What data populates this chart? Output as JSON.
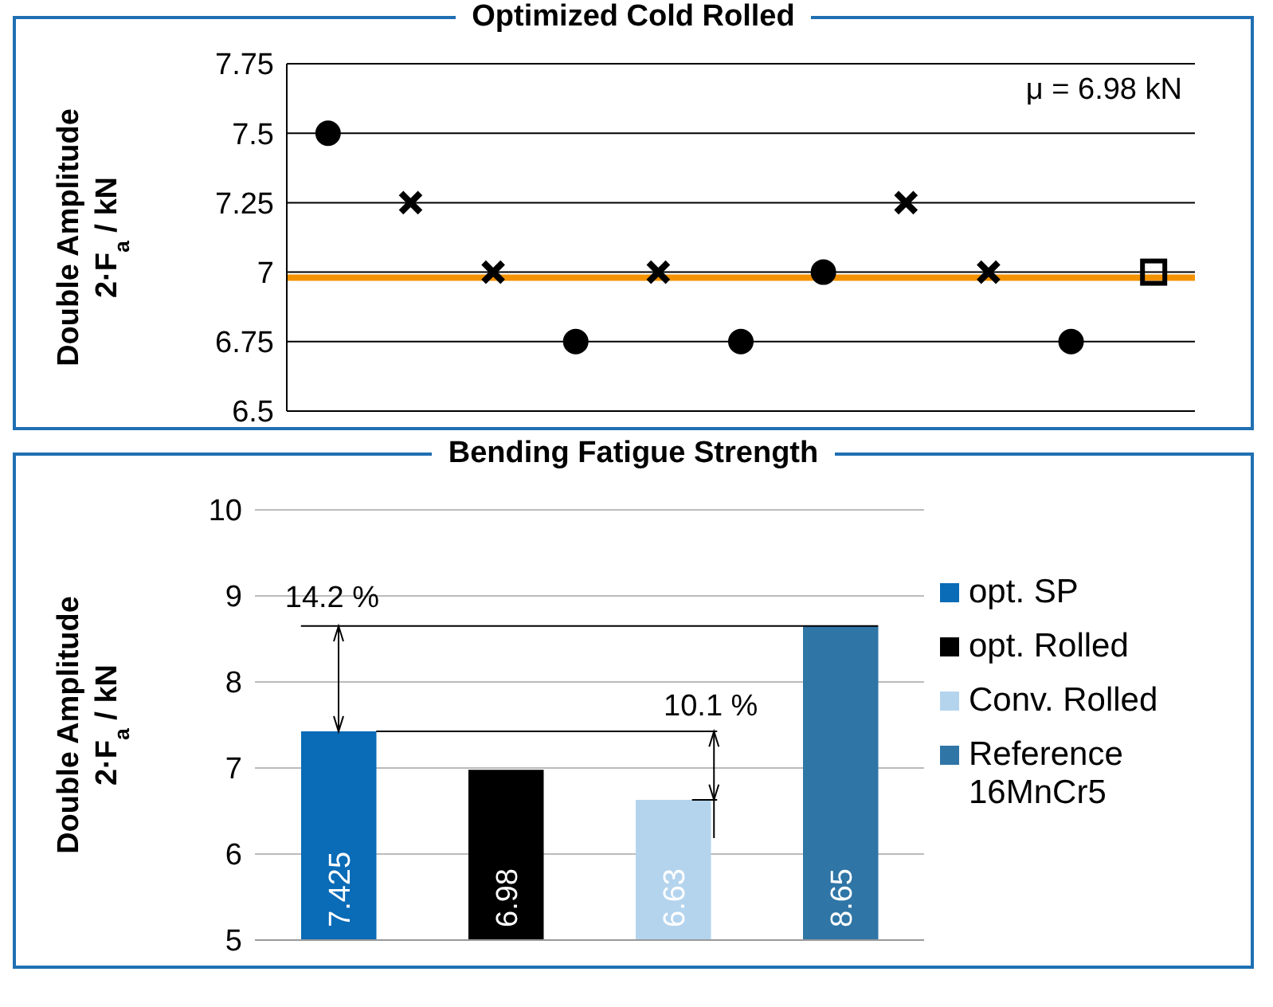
{
  "chart_data": [
    {
      "type": "scatter",
      "title": "Optimized Cold Rolled",
      "ylabel": "Double Amplitude\n2·F$_{a}$ / kN",
      "categories": [
        null,
        null,
        null,
        null,
        null,
        null,
        null,
        null,
        null,
        null,
        null
      ],
      "series": [
        {
          "color": "#000000",
          "marker": "circle",
          "values": [
            7.5,
            null,
            null,
            6.75,
            null,
            6.75,
            7,
            null,
            null,
            6.75,
            null
          ]
        },
        {
          "color": "#000000",
          "marker": "cross",
          "values": [
            null,
            7.25,
            7,
            null,
            7,
            null,
            null,
            7.25,
            7,
            null,
            null
          ]
        },
        {
          "color": "#000000",
          "marker": "square",
          "values": [
            null,
            null,
            null,
            null,
            null,
            null,
            null,
            null,
            null,
            null,
            7
          ]
        }
      ],
      "ylim": [
        6.5,
        7.75
      ],
      "yticks": [
        6.5,
        6.75,
        7,
        7.25,
        7.5,
        7.75
      ],
      "grid": "y",
      "tick_labels": "y",
      "annotations": [
        "μ = 6.98 kN"
      ],
      "ref_lines": [
        {
          "axis": "y",
          "value": 6.98,
          "color": "#f39200"
        }
      ]
    },
    {
      "type": "bar",
      "title": "Bending Fatigue Strength",
      "ylabel": "Double Amplitude\n2·F$_{a}$ / kN",
      "categories": [
        null,
        null,
        null,
        null
      ],
      "series": [
        {
          "name": "opt. SP",
          "color": "#0a6bb7",
          "values": [
            7.425,
            null,
            null,
            null
          ]
        },
        {
          "name": "opt. Rolled",
          "color": "#000000",
          "values": [
            null,
            6.98,
            null,
            null
          ]
        },
        {
          "name": "Conv. Rolled",
          "color": "#b4d4ee",
          "values": [
            null,
            null,
            6.63,
            null
          ]
        },
        {
          "name": "Reference 16MnCr5",
          "color": "#2f75a6",
          "values": [
            null,
            null,
            null,
            8.65
          ]
        }
      ],
      "ylim": [
        5,
        10
      ],
      "yticks": [
        5,
        6,
        7,
        8,
        9,
        10
      ],
      "grid": "y",
      "legend": "right",
      "data_labels": true,
      "tick_labels": "y",
      "ref_lines": [
        {
          "axis": "y",
          "value": 8.65,
          "color": "#000000"
        },
        {
          "axis": "y",
          "value": 7.425,
          "color": "#000000"
        }
      ],
      "annotations": [
        "14.2 %",
        "10.1 %"
      ]
    }
  ]
}
